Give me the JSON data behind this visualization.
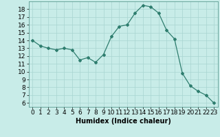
{
  "x": [
    0,
    1,
    2,
    3,
    4,
    5,
    6,
    7,
    8,
    9,
    10,
    11,
    12,
    13,
    14,
    15,
    16,
    17,
    18,
    19,
    20,
    21,
    22,
    23
  ],
  "y": [
    14.0,
    13.3,
    13.0,
    12.8,
    13.0,
    12.8,
    11.5,
    11.8,
    11.2,
    12.2,
    14.5,
    15.8,
    16.0,
    17.5,
    18.5,
    18.3,
    17.5,
    15.3,
    14.2,
    9.8,
    8.2,
    7.5,
    7.0,
    6.0
  ],
  "line_color": "#2e7d6e",
  "marker": "D",
  "marker_size": 2,
  "bg_color": "#c8ece8",
  "grid_color": "#a8d4d0",
  "xlabel": "Humidex (Indice chaleur)",
  "xlabel_fontsize": 7,
  "ylim": [
    5.5,
    19.0
  ],
  "xlim": [
    -0.5,
    23.5
  ],
  "yticks": [
    6,
    7,
    8,
    9,
    10,
    11,
    12,
    13,
    14,
    15,
    16,
    17,
    18
  ],
  "xticks": [
    0,
    1,
    2,
    3,
    4,
    5,
    6,
    7,
    8,
    9,
    10,
    11,
    12,
    13,
    14,
    15,
    16,
    17,
    18,
    19,
    20,
    21,
    22,
    23
  ],
  "tick_fontsize": 6.5,
  "spine_color": "#5a9a90"
}
